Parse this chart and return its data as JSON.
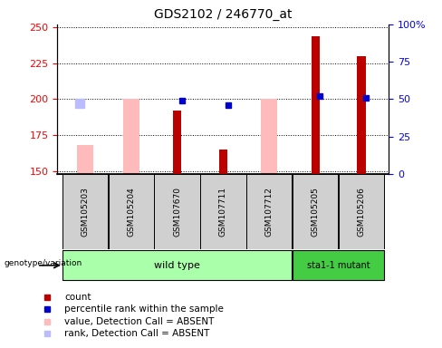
{
  "title": "GDS2102 / 246770_at",
  "samples": [
    "GSM105203",
    "GSM105204",
    "GSM107670",
    "GSM107711",
    "GSM107712",
    "GSM105205",
    "GSM105206"
  ],
  "n_wild": 5,
  "n_mutant": 2,
  "ylim_left": [
    148,
    252
  ],
  "ylim_right": [
    0,
    100
  ],
  "yticks_left": [
    150,
    175,
    200,
    225,
    250
  ],
  "ytick_labels_left": [
    "150",
    "175",
    "200",
    "225",
    "250"
  ],
  "yticks_right": [
    0,
    25,
    50,
    75,
    100
  ],
  "ytick_labels_right": [
    "0",
    "25",
    "50",
    "75",
    "100%"
  ],
  "count": [
    null,
    null,
    192,
    165,
    null,
    244,
    230
  ],
  "percentile_rank_pct": [
    null,
    null,
    49,
    46,
    null,
    52,
    51
  ],
  "value_absent": [
    168,
    200,
    null,
    null,
    200,
    null,
    null
  ],
  "rank_absent_pct": [
    47,
    null,
    null,
    null,
    null,
    null,
    null
  ],
  "color_count": "#bb0000",
  "color_percentile": "#0000cc",
  "color_value_absent": "#ffbbbb",
  "color_rank_absent": "#bbbbff",
  "color_wt_bg": "#aaffaa",
  "color_mut_bg": "#44cc44",
  "color_sample_bg": "#d0d0d0",
  "legend_items": [
    {
      "label": "count",
      "color": "#bb0000"
    },
    {
      "label": "percentile rank within the sample",
      "color": "#0000cc"
    },
    {
      "label": "value, Detection Call = ABSENT",
      "color": "#ffbbbb"
    },
    {
      "label": "rank, Detection Call = ABSENT",
      "color": "#bbbbff"
    }
  ]
}
